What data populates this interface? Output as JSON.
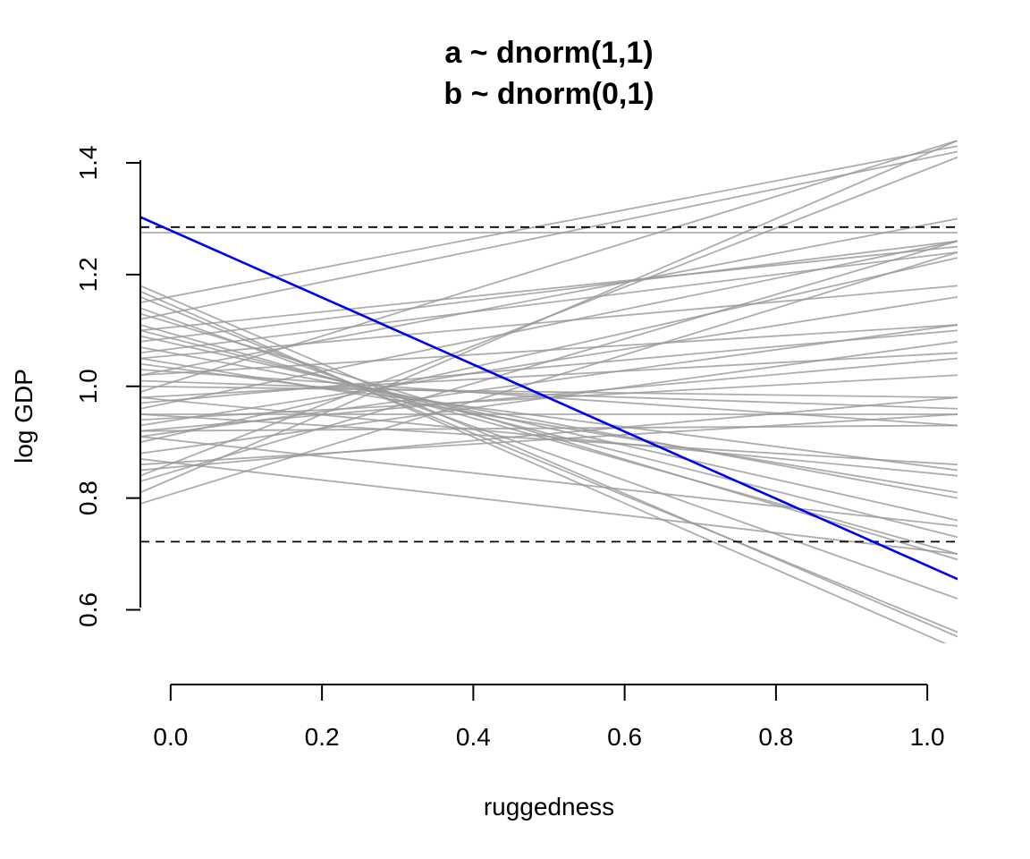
{
  "chart_data": {
    "type": "line",
    "title_lines": [
      "a ~ dnorm(1,1)",
      "b ~ dnorm(0,1)"
    ],
    "xlabel": "ruggedness",
    "ylabel": "log GDP",
    "x_ticks": [
      "0.0",
      "0.2",
      "0.4",
      "0.6",
      "0.8",
      "1.0"
    ],
    "y_ticks": [
      "0.6",
      "0.8",
      "1.0",
      "1.2",
      "1.4"
    ],
    "xlim": [
      -0.04,
      1.04
    ],
    "ylim": [
      0.54,
      1.44
    ],
    "grid": false,
    "legend": "none",
    "reference_lines": [
      {
        "y": 1.285,
        "style": "dashed",
        "color": "#000000"
      },
      {
        "y": 0.722,
        "style": "dashed",
        "color": "#000000"
      }
    ],
    "highlighted_line": {
      "color": "#0000ee",
      "x": [
        -0.04,
        1.04
      ],
      "y": [
        1.303,
        0.655
      ]
    },
    "prior_lines": {
      "color": "#999999",
      "x": [
        -0.04,
        1.04
      ],
      "lines": [
        [
          1.275,
          1.275
        ],
        [
          1.18,
          0.552
        ],
        [
          1.17,
          0.53
        ],
        [
          1.16,
          0.56
        ],
        [
          1.15,
          1.43
        ],
        [
          1.14,
          0.62
        ],
        [
          1.13,
          0.69
        ],
        [
          1.12,
          1.42
        ],
        [
          1.11,
          0.7
        ],
        [
          1.1,
          0.73
        ],
        [
          1.1,
          1.25
        ],
        [
          1.09,
          0.76
        ],
        [
          1.08,
          1.26
        ],
        [
          1.07,
          0.8
        ],
        [
          1.06,
          1.24
        ],
        [
          1.05,
          0.81
        ],
        [
          1.05,
          1.18
        ],
        [
          1.04,
          0.85
        ],
        [
          1.03,
          0.93
        ],
        [
          1.02,
          1.11
        ],
        [
          1.02,
          1.3
        ],
        [
          1.01,
          0.96
        ],
        [
          1.0,
          0.98
        ],
        [
          0.99,
          1.44
        ],
        [
          0.98,
          1.06
        ],
        [
          0.98,
          0.84
        ],
        [
          0.97,
          1.1
        ],
        [
          0.96,
          1.26
        ],
        [
          0.95,
          0.86
        ],
        [
          0.95,
          0.95
        ],
        [
          0.94,
          1.02
        ],
        [
          0.93,
          1.16
        ],
        [
          0.92,
          0.93
        ],
        [
          0.92,
          1.05
        ],
        [
          0.91,
          1.11
        ],
        [
          0.91,
          0.75
        ],
        [
          0.9,
          1.23
        ],
        [
          0.88,
          1.08
        ],
        [
          0.87,
          0.7
        ],
        [
          0.86,
          0.95
        ],
        [
          0.85,
          0.98
        ],
        [
          0.84,
          1.41
        ],
        [
          0.83,
          1.26
        ],
        [
          0.81,
          1.44
        ],
        [
          0.79,
          1.24
        ]
      ]
    }
  }
}
